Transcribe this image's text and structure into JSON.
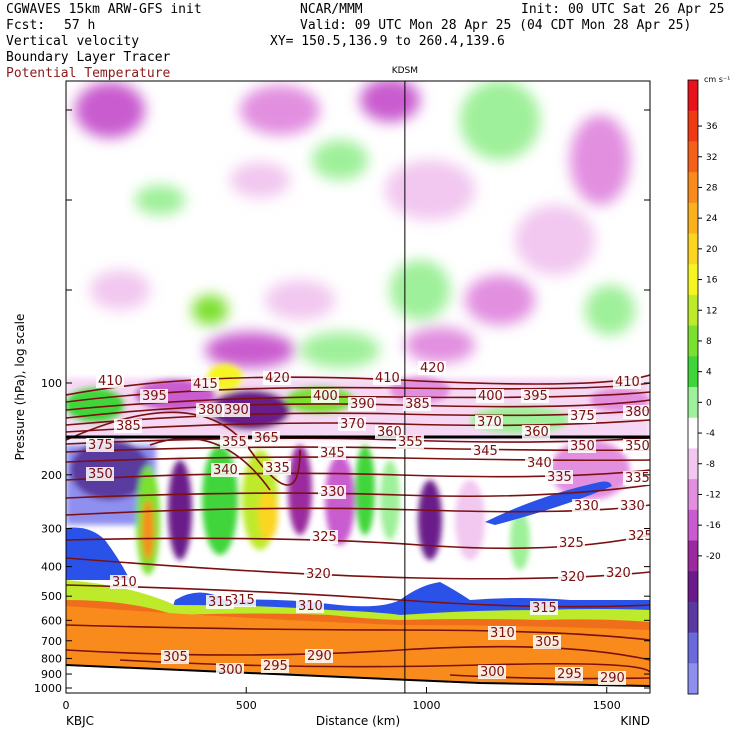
{
  "header": {
    "model": "CGWAVES 15km ARW-GFS init",
    "org": "NCAR/MMM",
    "init": "Init: 00 UTC Sat 26 Apr 25",
    "fcst_label": "Fcst:",
    "fcst_value": "57 h",
    "valid": "Valid: 09 UTC Mon 28 Apr 25 (04 CDT Mon 28 Apr 25)",
    "xy": "XY= 150.5,136.9 to 260.4,139.6",
    "field1": "Vertical velocity",
    "field2": "Boundary Layer Tracer",
    "field3": "Potential Temperature"
  },
  "chart_data": {
    "type": "heatmap",
    "station_marker": "KDSM",
    "left_station": "KBJC",
    "right_station": "KIND",
    "xlabel": "Distance (km)",
    "ylabel": "Pressure (hPa), log scale",
    "x_ticks": [
      "0",
      "500",
      "1000",
      "1500"
    ],
    "x_range": [
      0,
      1620
    ],
    "kdsm_km": 940,
    "y_ticks": [
      "100",
      "200",
      "300",
      "400",
      "500",
      "600",
      "700",
      "800",
      "900",
      "1000"
    ],
    "y_log": true,
    "colorbar_unit": "cm s⁻¹",
    "colorbar_ticks": [
      "36",
      "32",
      "28",
      "24",
      "20",
      "16",
      "12",
      "8",
      "4",
      "0",
      "-4",
      "-8",
      "-12",
      "-16",
      "-20"
    ],
    "colorbar_colors": [
      "#e8121b",
      "#f03a13",
      "#f5611a",
      "#f88b1c",
      "#fbb11e",
      "#fbd520",
      "#f5f522",
      "#bdea2a",
      "#7be02f",
      "#3fd63a",
      "#9ff09a",
      "#ffffff",
      "#f2c8f0",
      "#e28fe0",
      "#c95bcf",
      "#9a2a9e",
      "#6a1a8a",
      "#5a3aa0",
      "#6a6adc",
      "#8f8ff0"
    ],
    "theta_contour_color": "#7a1010",
    "tracer_color": "#2a52e8",
    "contour_labels": [
      "410",
      "395",
      "385",
      "375",
      "350",
      "415",
      "390",
      "380",
      "365",
      "355",
      "340",
      "420",
      "400",
      "335",
      "345",
      "330",
      "325",
      "320",
      "315",
      "310",
      "305",
      "300",
      "295",
      "290",
      "360",
      "370"
    ]
  }
}
